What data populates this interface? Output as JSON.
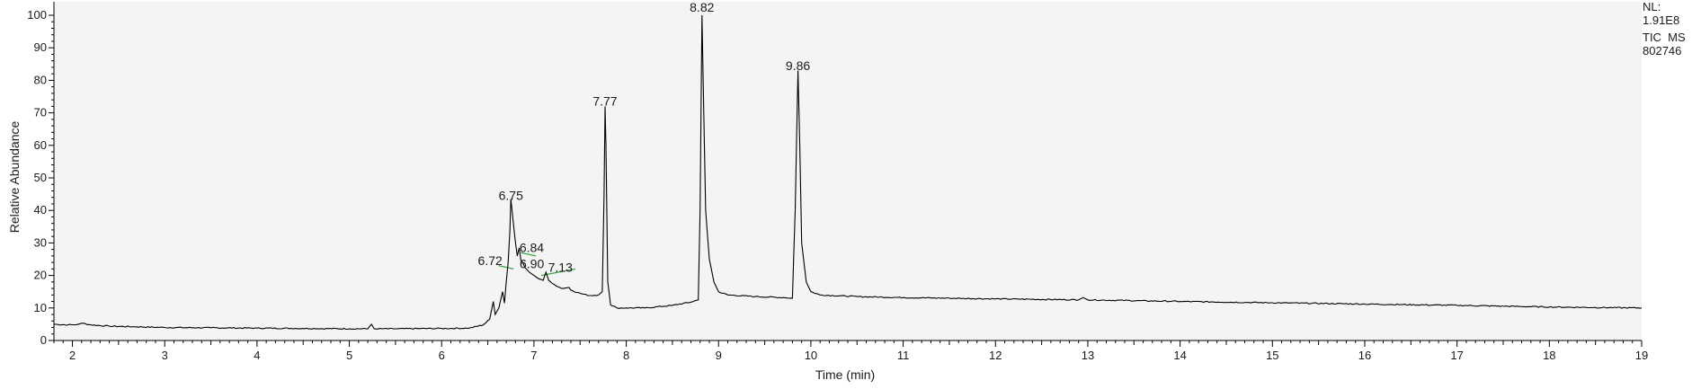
{
  "chart_data": {
    "type": "line",
    "title": "",
    "xlabel": "Time (min)",
    "ylabel": "Relative Abundance",
    "xlim": [
      1.8,
      19.0
    ],
    "ylim": [
      0,
      100
    ],
    "x_ticks": [
      "2",
      "3",
      "4",
      "5",
      "6",
      "7",
      "8",
      "9",
      "10",
      "11",
      "12",
      "13",
      "14",
      "15",
      "16",
      "17",
      "18",
      "19"
    ],
    "y_ticks": [
      "0",
      "10",
      "20",
      "30",
      "40",
      "50",
      "60",
      "70",
      "80",
      "90",
      "100"
    ],
    "grid": false,
    "info": {
      "nl_label": "NL:",
      "nl_value": "1.91E8",
      "trace_label": "TIC  MS",
      "file_label": "802746"
    },
    "colors": {
      "trace": "#000000",
      "baseline_marker": "#3aa346",
      "plot_background": "#f4f4f4"
    },
    "peak_labels": [
      {
        "x": 6.72,
        "text": "6.72",
        "label_y": 24
      },
      {
        "x": 6.75,
        "text": "6.75",
        "label_y": 44
      },
      {
        "x": 6.84,
        "text": "6.84",
        "label_y": 28
      },
      {
        "x": 6.9,
        "text": "6.90",
        "label_y": 23
      },
      {
        "x": 7.13,
        "text": "7.13",
        "label_y": 22
      },
      {
        "x": 7.77,
        "text": "7.77",
        "label_y": 73
      },
      {
        "x": 8.82,
        "text": "8.82",
        "label_y": 102
      },
      {
        "x": 9.86,
        "text": "9.86",
        "label_y": 84
      }
    ],
    "baseline_segments": [
      {
        "x": [
          6.62,
          6.78
        ],
        "y": [
          23,
          22
        ]
      },
      {
        "x": [
          6.86,
          7.02
        ],
        "y": [
          27,
          26
        ]
      },
      {
        "x": [
          7.08,
          7.45
        ],
        "y": [
          20,
          22
        ]
      }
    ],
    "series": [
      {
        "values": [
          [
            1.8,
            5.0
          ],
          [
            1.95,
            4.8
          ],
          [
            2.05,
            4.9
          ],
          [
            2.1,
            5.3
          ],
          [
            2.2,
            4.8
          ],
          [
            2.4,
            4.4
          ],
          [
            2.7,
            4.2
          ],
          [
            3.0,
            4.0
          ],
          [
            3.5,
            3.9
          ],
          [
            4.0,
            3.8
          ],
          [
            4.5,
            3.7
          ],
          [
            5.0,
            3.6
          ],
          [
            5.2,
            3.6
          ],
          [
            5.24,
            5.0
          ],
          [
            5.27,
            3.6
          ],
          [
            5.5,
            3.6
          ],
          [
            6.0,
            3.7
          ],
          [
            6.3,
            3.8
          ],
          [
            6.45,
            4.8
          ],
          [
            6.52,
            6.5
          ],
          [
            6.56,
            12.0
          ],
          [
            6.58,
            8.0
          ],
          [
            6.62,
            10.0
          ],
          [
            6.66,
            15.0
          ],
          [
            6.68,
            11.5
          ],
          [
            6.7,
            18.0
          ],
          [
            6.72,
            24.0
          ],
          [
            6.74,
            34.0
          ],
          [
            6.75,
            43.5
          ],
          [
            6.77,
            38.0
          ],
          [
            6.8,
            30.0
          ],
          [
            6.82,
            26.0
          ],
          [
            6.84,
            28.5
          ],
          [
            6.86,
            24.5
          ],
          [
            6.88,
            24.0
          ],
          [
            6.9,
            22.5
          ],
          [
            6.95,
            21.0
          ],
          [
            7.0,
            20.0
          ],
          [
            7.05,
            19.0
          ],
          [
            7.1,
            18.5
          ],
          [
            7.13,
            21.0
          ],
          [
            7.16,
            18.5
          ],
          [
            7.2,
            17.5
          ],
          [
            7.3,
            16.0
          ],
          [
            7.38,
            16.3
          ],
          [
            7.4,
            15.5
          ],
          [
            7.5,
            14.5
          ],
          [
            7.6,
            13.8
          ],
          [
            7.7,
            14.0
          ],
          [
            7.74,
            15.0
          ],
          [
            7.76,
            45.0
          ],
          [
            7.77,
            72.0
          ],
          [
            7.78,
            60.0
          ],
          [
            7.8,
            18.0
          ],
          [
            7.83,
            11.0
          ],
          [
            7.9,
            10.0
          ],
          [
            8.0,
            10.0
          ],
          [
            8.2,
            10.0
          ],
          [
            8.5,
            10.8
          ],
          [
            8.7,
            11.8
          ],
          [
            8.78,
            12.5
          ],
          [
            8.8,
            40.0
          ],
          [
            8.82,
            100.0
          ],
          [
            8.84,
            70.0
          ],
          [
            8.86,
            40.0
          ],
          [
            8.9,
            25.0
          ],
          [
            8.95,
            18.0
          ],
          [
            9.0,
            15.0
          ],
          [
            9.1,
            14.0
          ],
          [
            9.4,
            13.5
          ],
          [
            9.7,
            13.2
          ],
          [
            9.8,
            13.0
          ],
          [
            9.83,
            40.0
          ],
          [
            9.86,
            83.0
          ],
          [
            9.88,
            60.0
          ],
          [
            9.9,
            30.0
          ],
          [
            9.95,
            18.0
          ],
          [
            10.0,
            15.0
          ],
          [
            10.1,
            14.0
          ],
          [
            10.5,
            13.5
          ],
          [
            11.0,
            13.2
          ],
          [
            11.5,
            13.0
          ],
          [
            12.0,
            12.8
          ],
          [
            12.9,
            12.5
          ],
          [
            12.95,
            13.2
          ],
          [
            13.0,
            12.5
          ],
          [
            14.0,
            12.0
          ],
          [
            15.0,
            11.6
          ],
          [
            16.0,
            11.2
          ],
          [
            17.0,
            10.8
          ],
          [
            18.0,
            10.3
          ],
          [
            19.0,
            10.0
          ]
        ]
      }
    ]
  }
}
